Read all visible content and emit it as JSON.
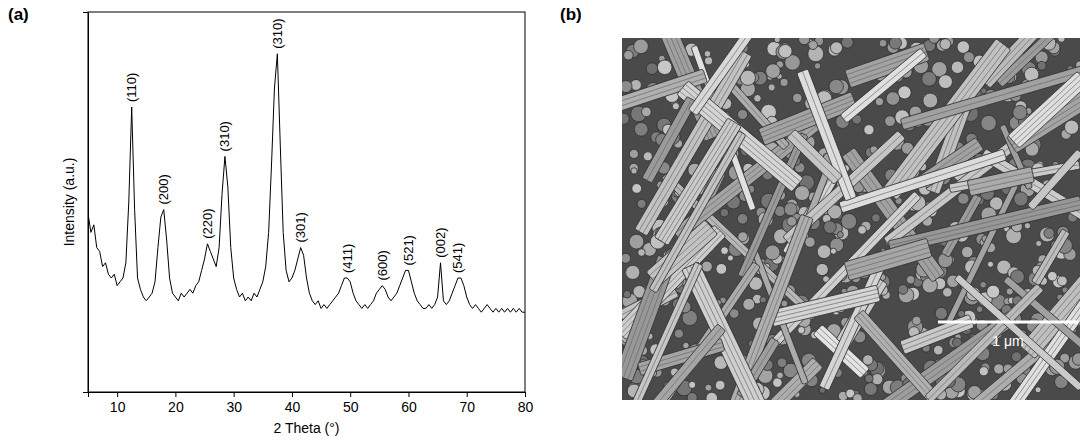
{
  "chart_data": {
    "type": "line",
    "xlabel": "2 Theta (°)",
    "ylabel": "Intensity (a.u.)",
    "color": "#000000",
    "grid": false,
    "tick_labels": "x",
    "xlim": [
      5,
      80
    ],
    "xticks": [
      10,
      20,
      30,
      40,
      50,
      60,
      70,
      80
    ],
    "ylim": [
      0,
      100
    ],
    "x": [
      5,
      5.5,
      6,
      6.5,
      7,
      7.5,
      8,
      8.5,
      9,
      9.5,
      10,
      10.5,
      11,
      11.5,
      12,
      12.5,
      13,
      13.5,
      14,
      14.5,
      15,
      15.5,
      16,
      16.5,
      17,
      17.5,
      18,
      18.5,
      19,
      19.5,
      20,
      20.5,
      21,
      21.5,
      22,
      22.5,
      23,
      23.5,
      24,
      24.5,
      25,
      25.5,
      26,
      26.5,
      27,
      27.5,
      28,
      28.5,
      29,
      29.5,
      30,
      30.5,
      31,
      31.5,
      32,
      32.5,
      33,
      33.5,
      34,
      34.5,
      35,
      35.5,
      36,
      36.5,
      37,
      37.5,
      38,
      38.5,
      39,
      39.5,
      40,
      40.5,
      41,
      41.5,
      42,
      42.5,
      43,
      43.5,
      44,
      44.5,
      45,
      45.5,
      46,
      46.5,
      47,
      47.5,
      48,
      48.5,
      49,
      49.5,
      50,
      50.5,
      51,
      51.5,
      52,
      52.5,
      53,
      53.5,
      54,
      54.5,
      55,
      55.5,
      56,
      56.5,
      57,
      57.5,
      58,
      58.5,
      59,
      59.5,
      60,
      60.5,
      61,
      61.5,
      62,
      62.5,
      63,
      63.5,
      64,
      64.5,
      65,
      65.5,
      66,
      66.5,
      67,
      67.5,
      68,
      68.5,
      69,
      69.5,
      70,
      70.5,
      71,
      71.5,
      72,
      72.5,
      73,
      73.5,
      74,
      74.5,
      75,
      75.5,
      76,
      76.5,
      77,
      77.5,
      78,
      78.5,
      79,
      79.5,
      80
    ],
    "values": [
      47,
      42,
      44,
      38,
      37,
      33,
      34,
      31,
      30,
      31,
      28,
      29,
      30,
      34,
      50,
      75,
      48,
      30,
      27,
      25,
      24,
      25,
      26,
      29,
      38,
      46,
      48,
      40,
      30,
      26,
      25,
      24,
      26,
      25,
      26,
      27,
      26,
      28,
      29,
      32,
      35,
      39,
      37,
      35,
      33,
      38,
      52,
      62,
      54,
      38,
      30,
      27,
      25,
      26,
      24,
      25,
      24,
      26,
      25,
      27,
      29,
      33,
      42,
      60,
      80,
      89,
      65,
      42,
      32,
      29,
      30,
      32,
      35,
      38,
      36,
      30,
      26,
      24,
      23,
      24,
      22,
      23,
      22,
      23,
      24,
      25,
      26,
      28,
      30,
      30,
      29,
      26,
      24,
      23,
      22,
      23,
      22,
      23,
      24,
      26,
      27,
      28,
      27,
      25,
      24,
      25,
      26,
      28,
      30,
      32,
      32,
      29,
      26,
      24,
      23,
      22,
      22,
      23,
      22,
      23,
      25,
      34,
      24,
      23,
      24,
      26,
      28,
      30,
      30,
      28,
      25,
      23,
      22,
      23,
      22,
      21,
      22,
      23,
      22,
      21,
      22,
      21,
      22,
      21,
      22,
      21,
      22,
      21,
      22,
      21,
      21
    ],
    "annotations": [
      {
        "text": "(110)",
        "x": 12.5
      },
      {
        "text": "(200)",
        "x": 18
      },
      {
        "text": "(220)",
        "x": 25.5
      },
      {
        "text": "(310)",
        "x": 28.5
      },
      {
        "text": "(310)",
        "x": 37.5
      },
      {
        "text": "(301)",
        "x": 41.5
      },
      {
        "text": "(411)",
        "x": 49.5
      },
      {
        "text": "(600)",
        "x": 55.5
      },
      {
        "text": "(521)",
        "x": 60
      },
      {
        "text": "(002)",
        "x": 65.5
      },
      {
        "text": "(541)",
        "x": 68.5
      }
    ]
  },
  "panels": {
    "a": "(a)",
    "b": "(b)"
  },
  "sem_image": {
    "scale_bar_label": "1 μm"
  }
}
